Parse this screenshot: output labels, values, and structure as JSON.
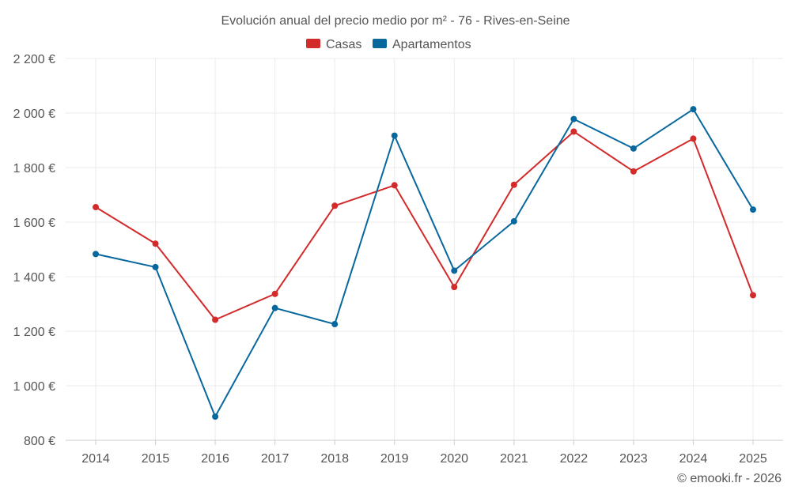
{
  "chart_data": {
    "type": "line",
    "title": "Evolución anual del precio medio por m² - 76 - Rives-en-Seine",
    "categories": [
      "2014",
      "2015",
      "2016",
      "2017",
      "2018",
      "2019",
      "2020",
      "2021",
      "2022",
      "2023",
      "2024",
      "2025"
    ],
    "series": [
      {
        "name": "Casas",
        "color": "#d32a2a",
        "values": [
          1655,
          1521,
          1242,
          1337,
          1660,
          1735,
          1362,
          1737,
          1932,
          1786,
          1906,
          1332
        ]
      },
      {
        "name": "Apartamentos",
        "color": "#08689e",
        "values": [
          1483,
          1435,
          887,
          1285,
          1226,
          1917,
          1422,
          1603,
          1978,
          1870,
          2014,
          1646
        ]
      }
    ],
    "ylim": [
      800,
      2200
    ],
    "yticks": [
      800,
      1000,
      1200,
      1400,
      1600,
      1800,
      2000,
      2200
    ],
    "ytick_labels": [
      "800 €",
      "1 000 €",
      "1 200 €",
      "1 400 €",
      "1 600 €",
      "1 800 €",
      "2 000 €",
      "2 200 €"
    ],
    "xlabel": "",
    "ylabel": "",
    "legend_position": "top-center",
    "grid": true
  },
  "credit": "© emooki.fr - 2026"
}
